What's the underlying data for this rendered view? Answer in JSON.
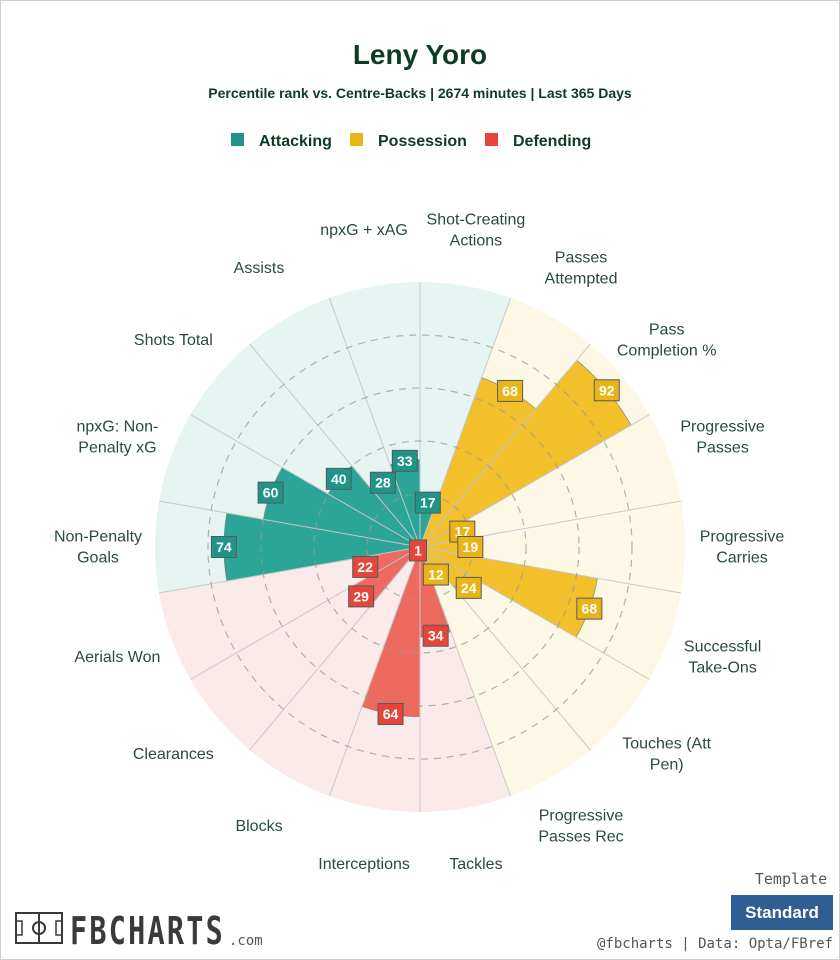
{
  "chart_data": {
    "type": "polar-bar",
    "title": "Leny Yoro",
    "subtitle": "Percentile rank vs. Centre-Backs | 2674 minutes | Last 365 Days",
    "legend": [
      {
        "name": "Attacking",
        "color": "#2aa598"
      },
      {
        "name": "Possession",
        "color": "#f2c02b"
      },
      {
        "name": "Defending",
        "color": "#e9463c"
      }
    ],
    "rmax": 100,
    "gridlines": [
      20,
      40,
      60,
      80
    ],
    "categories": [
      {
        "label": [
          "Shot-Creating",
          "Actions"
        ],
        "value": 17,
        "group": "Attacking"
      },
      {
        "label": [
          "Passes",
          "Attempted"
        ],
        "value": 68,
        "group": "Possession"
      },
      {
        "label": [
          "Pass",
          "Completion %"
        ],
        "value": 92,
        "group": "Possession"
      },
      {
        "label": [
          "Progressive",
          "Passes"
        ],
        "value": 17,
        "group": "Possession"
      },
      {
        "label": [
          "Progressive",
          "Carries"
        ],
        "value": 19,
        "group": "Possession"
      },
      {
        "label": [
          "Successful",
          "Take-Ons"
        ],
        "value": 68,
        "group": "Possession"
      },
      {
        "label": [
          "Touches (Att",
          "Pen)"
        ],
        "value": 24,
        "group": "Possession"
      },
      {
        "label": [
          "Progressive",
          "Passes Rec"
        ],
        "value": 12,
        "group": "Possession"
      },
      {
        "label": [
          "Tackles"
        ],
        "value": 34,
        "group": "Defending"
      },
      {
        "label": [
          "Interceptions"
        ],
        "value": 64,
        "group": "Defending"
      },
      {
        "label": [
          "Blocks"
        ],
        "value": 1,
        "group": "Defending"
      },
      {
        "label": [
          "Clearances"
        ],
        "value": 29,
        "group": "Defending"
      },
      {
        "label": [
          "Aerials Won"
        ],
        "value": 22,
        "group": "Defending"
      },
      {
        "label": [
          "Non-Penalty",
          "Goals"
        ],
        "value": 74,
        "group": "Attacking"
      },
      {
        "label": [
          "npxG: Non-",
          "Penalty xG"
        ],
        "value": 60,
        "group": "Attacking"
      },
      {
        "label": [
          "Shots Total"
        ],
        "value": 40,
        "group": "Attacking"
      },
      {
        "label": [
          "Assists"
        ],
        "value": 28,
        "group": "Attacking"
      },
      {
        "label": [
          "npxG + xAG"
        ],
        "value": 33,
        "group": "Attacking"
      }
    ]
  },
  "colors": {
    "title": "#0d3b24",
    "label": "#2a4a3a",
    "Attacking": {
      "bar": "#2aa598",
      "tag": "#1f9488",
      "bg": "#e6f4f2"
    },
    "Possession": {
      "bar": "#f2c02b",
      "tag": "#e8b418",
      "bg": "#fdf7e6"
    },
    "Defending": {
      "bar": "#ef6a5e",
      "tag": "#e5453a",
      "bg": "#fbeaea"
    }
  },
  "footer": {
    "template_label": "Template",
    "template_button": "Standard",
    "credit": "@fbcharts | Data: Opta/FBref",
    "logo_text": "FBCHARTS",
    "logo_suffix": ".com",
    "logo_icon": "pitch-icon"
  }
}
